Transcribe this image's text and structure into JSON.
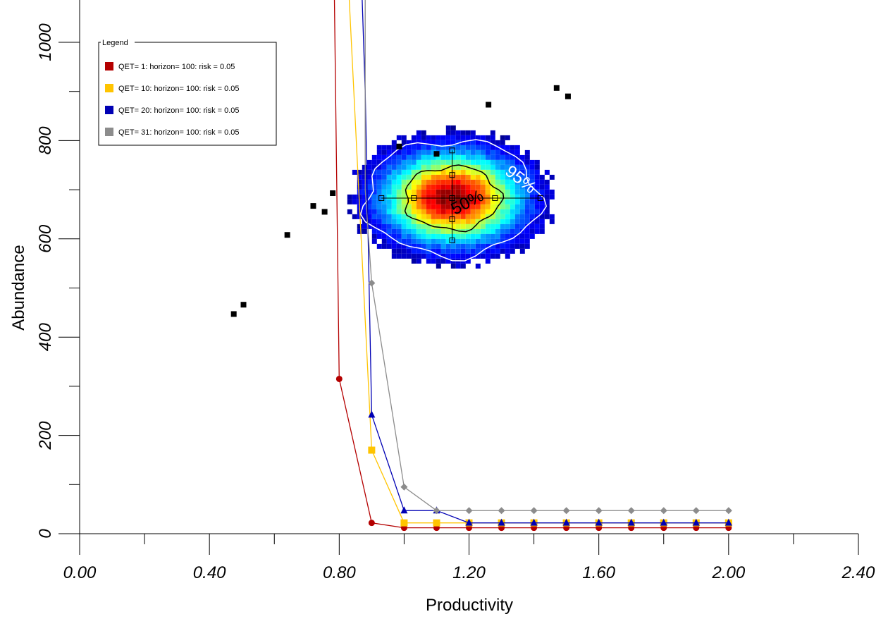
{
  "chart_data": {
    "type": "scatter",
    "xlabel": "Productivity",
    "ylabel": "Abundance",
    "xlim": [
      0,
      2.4
    ],
    "ylim": [
      0,
      1000
    ],
    "x_tick_labels": [
      "0.00",
      "0.40",
      "0.80",
      "1.20",
      "1.60",
      "2.00",
      "2.40"
    ],
    "y_tick_labels": [
      "0",
      "200",
      "400",
      "600",
      "800",
      "1000"
    ],
    "grid": false,
    "legend": {
      "title": "Legend",
      "placement": "top-left",
      "entries": [
        {
          "label": "QET= 1: horizon= 100: risk = 0.05",
          "color": "#b40000"
        },
        {
          "label": "QET= 10: horizon= 100: risk = 0.05",
          "color": "#ffc400"
        },
        {
          "label": "QET= 20: horizon= 100: risk = 0.05",
          "color": "#0000b4"
        },
        {
          "label": "QET= 31: horizon= 100: risk = 0.05",
          "color": "#8c8c8c"
        }
      ]
    },
    "series": [
      {
        "color": "#b40000",
        "marker": "circle",
        "x": [
          0.8,
          0.9,
          1.0,
          1.1,
          1.2,
          1.3,
          1.4,
          1.5,
          1.6,
          1.7,
          1.8,
          1.9,
          2.0
        ],
        "y": [
          315,
          22,
          12,
          12,
          12,
          12,
          12,
          12,
          12,
          12,
          12,
          12,
          12
        ],
        "upper_x": [
          0.785,
          0.8
        ],
        "upper_y": [
          1100,
          315
        ]
      },
      {
        "color": "#ffc400",
        "marker": "square",
        "x": [
          0.9,
          1.0,
          1.1,
          1.2,
          1.3,
          1.4,
          1.5,
          1.6,
          1.7,
          1.8,
          1.9,
          2.0
        ],
        "y": [
          170,
          22,
          22,
          22,
          22,
          22,
          22,
          22,
          22,
          22,
          22,
          22
        ],
        "upper_x": [
          0.83,
          0.9
        ],
        "upper_y": [
          1100,
          170
        ]
      },
      {
        "color": "#0000b4",
        "marker": "triangle",
        "x": [
          0.9,
          1.0,
          1.1,
          1.2,
          1.3,
          1.4,
          1.5,
          1.6,
          1.7,
          1.8,
          1.9,
          2.0
        ],
        "y": [
          242,
          47,
          47,
          22,
          22,
          22,
          22,
          22,
          22,
          22,
          22,
          22
        ],
        "upper_x": [
          0.87,
          0.88,
          0.9
        ],
        "upper_y": [
          1100,
          900,
          242
        ]
      },
      {
        "color": "#8c8c8c",
        "marker": "diamond",
        "x": [
          0.9,
          1.0,
          1.1,
          1.2,
          1.3,
          1.4,
          1.5,
          1.6,
          1.7,
          1.8,
          1.9,
          2.0
        ],
        "y": [
          510,
          95,
          47,
          47,
          47,
          47,
          47,
          47,
          47,
          47,
          47,
          47
        ],
        "upper_x": [
          0.88,
          0.88,
          0.9
        ],
        "upper_y": [
          1100,
          700,
          510
        ]
      }
    ],
    "observations": {
      "color": "#000000",
      "x": [
        0.475,
        0.505,
        0.64,
        0.72,
        0.755,
        0.78,
        0.985,
        1.1,
        1.26,
        1.47,
        1.505
      ],
      "y": [
        447,
        466,
        608,
        667,
        655,
        693,
        788,
        773,
        873,
        907,
        890
      ]
    },
    "density": {
      "center": [
        1.148,
        683
      ],
      "sd": [
        0.128,
        56
      ],
      "contours": [
        {
          "label": "50%",
          "color": "#000000",
          "text_color": "#000000"
        },
        {
          "label": "95%",
          "color": "#ffffff",
          "text_color": "#ffffff"
        }
      ],
      "crosshair": {
        "x_points": [
          0.93,
          1.03,
          1.148,
          1.28,
          1.42
        ],
        "y_points": [
          597,
          640,
          683,
          730,
          780
        ]
      }
    }
  }
}
